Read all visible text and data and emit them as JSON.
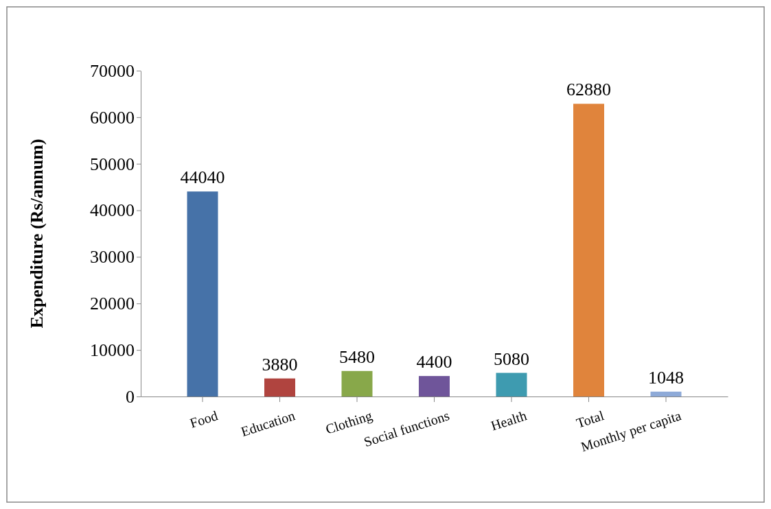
{
  "chart_data": {
    "type": "bar",
    "ylabel": "Expenditure (Rs/annum)",
    "categories": [
      "Food",
      "Education",
      "Clothing",
      "Social functions",
      "Health",
      "Total",
      "Monthly per capita"
    ],
    "values": [
      44040,
      3880,
      5480,
      4400,
      5080,
      62880,
      1048
    ],
    "colors": [
      "#4672a8",
      "#b0443f",
      "#88a84a",
      "#6f559a",
      "#3e9bb0",
      "#e0843c",
      "#8eaad8"
    ],
    "ylim": [
      0,
      70000
    ],
    "yticks": [
      0,
      10000,
      20000,
      30000,
      40000,
      50000,
      60000,
      70000
    ],
    "data_labels": true
  }
}
